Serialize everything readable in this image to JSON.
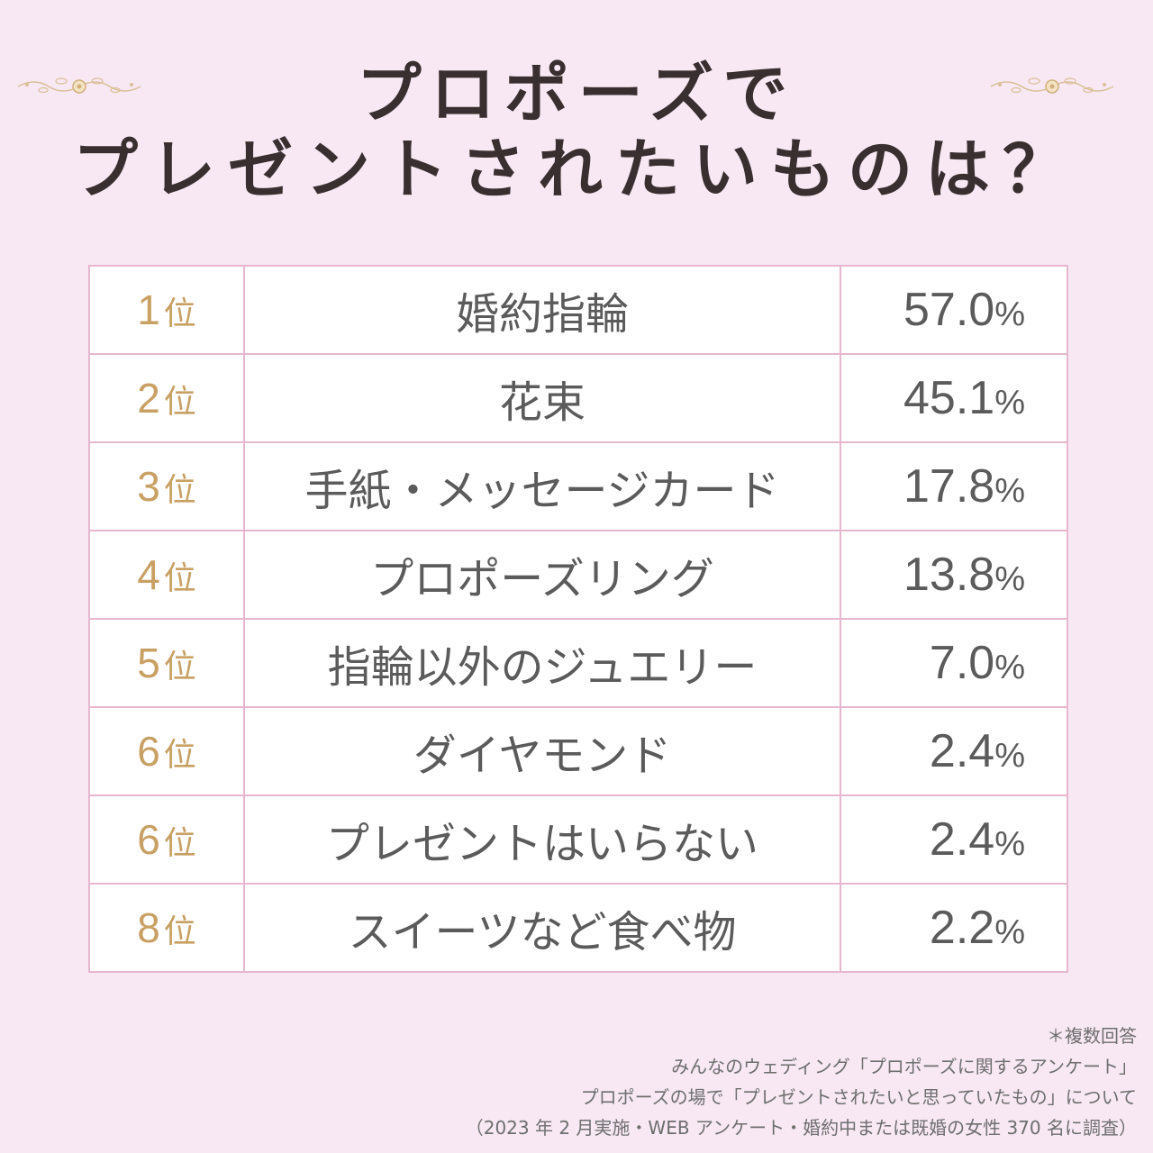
{
  "title": {
    "line1": "プロポーズで",
    "line2": "プレゼントされたいものは？"
  },
  "colors": {
    "background": "#f7e8f3",
    "rank_gold": "#c8a063",
    "table_border": "#e6b7cf",
    "text_dark": "#3a2f30",
    "text_gray": "#5b5b5b"
  },
  "icons": {
    "ornament_left": "floral-ornament-icon",
    "ornament_right": "floral-ornament-icon"
  },
  "chart_data": {
    "type": "table",
    "title": "プロポーズでプレゼントされたいものは？",
    "rank_suffix": "位",
    "value_unit": "%",
    "rows": [
      {
        "rank": "1",
        "item": "婚約指輪",
        "value": "57.0"
      },
      {
        "rank": "2",
        "item": "花束",
        "value": "45.1"
      },
      {
        "rank": "3",
        "item": "手紙・メッセージカード",
        "value": "17.8"
      },
      {
        "rank": "4",
        "item": "プロポーズリング",
        "value": "13.8"
      },
      {
        "rank": "5",
        "item": "指輪以外のジュエリー",
        "value": "7.0"
      },
      {
        "rank": "6",
        "item": "ダイヤモンド",
        "value": "2.4"
      },
      {
        "rank": "6",
        "item": "プレゼントはいらない",
        "value": "2.4"
      },
      {
        "rank": "8",
        "item": "スイーツなど食べ物",
        "value": "2.2"
      }
    ]
  },
  "footnotes": {
    "multiple_answer": "＊複数回答",
    "source": "みんなのウェディング「プロポーズに関するアンケート」",
    "question": "プロポーズの場で「プレゼントされたいと思っていたもの」について",
    "survey": "（2023 年 2 月実施・WEB アンケート・婚約中または既婚の女性 370 名に調査）"
  }
}
